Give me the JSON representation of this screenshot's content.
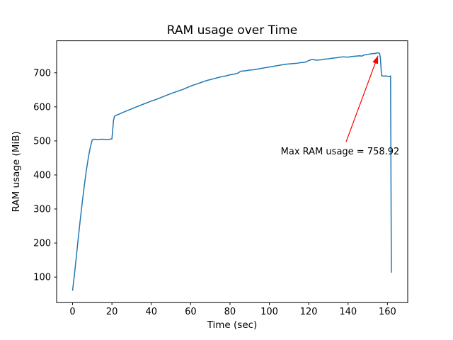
{
  "figure": {
    "background": "#ffffff"
  },
  "chart_data": {
    "type": "line",
    "title": "RAM usage over Time",
    "xlabel": "Time (sec)",
    "ylabel": "RAM usage (MiB)",
    "xlim": [
      -8.1,
      170.3
    ],
    "ylim": [
      25,
      794
    ],
    "x_ticks": [
      0,
      20,
      40,
      60,
      80,
      100,
      120,
      140,
      160
    ],
    "y_ticks": [
      100,
      200,
      300,
      400,
      500,
      600,
      700
    ],
    "grid": false,
    "legend": false,
    "line_color": "#1f77b4",
    "line_width": 1.5,
    "series": [
      {
        "name": "RAM usage",
        "points": [
          [
            0,
            60
          ],
          [
            1,
            110
          ],
          [
            2,
            165
          ],
          [
            3,
            220
          ],
          [
            4,
            273
          ],
          [
            5,
            323
          ],
          [
            6,
            370
          ],
          [
            7,
            413
          ],
          [
            8,
            450
          ],
          [
            9,
            481
          ],
          [
            10,
            503
          ],
          [
            11,
            505
          ],
          [
            13,
            504
          ],
          [
            15,
            505
          ],
          [
            17,
            504
          ],
          [
            19,
            505
          ],
          [
            20,
            506
          ],
          [
            20.8,
            560
          ],
          [
            21.3,
            572
          ],
          [
            22,
            575
          ],
          [
            23,
            577
          ],
          [
            25,
            582
          ],
          [
            27,
            587
          ],
          [
            30,
            594
          ],
          [
            33,
            601
          ],
          [
            36,
            608
          ],
          [
            40,
            617
          ],
          [
            43,
            623
          ],
          [
            46,
            630
          ],
          [
            50,
            639
          ],
          [
            53,
            645
          ],
          [
            56,
            651
          ],
          [
            60,
            661
          ],
          [
            62,
            665
          ],
          [
            64,
            669
          ],
          [
            66,
            673
          ],
          [
            68,
            677
          ],
          [
            70,
            680
          ],
          [
            72,
            683
          ],
          [
            74,
            686
          ],
          [
            76,
            689
          ],
          [
            78,
            691
          ],
          [
            80,
            694
          ],
          [
            82,
            696
          ],
          [
            84,
            699
          ],
          [
            85,
            703
          ],
          [
            86,
            705
          ],
          [
            88,
            706
          ],
          [
            90,
            708
          ],
          [
            92,
            709
          ],
          [
            94,
            711
          ],
          [
            96,
            713
          ],
          [
            98,
            715
          ],
          [
            100,
            717
          ],
          [
            102,
            719
          ],
          [
            104,
            721
          ],
          [
            106,
            723
          ],
          [
            108,
            725
          ],
          [
            110,
            726
          ],
          [
            112,
            727
          ],
          [
            114,
            728
          ],
          [
            116,
            730
          ],
          [
            118,
            731
          ],
          [
            119,
            733
          ],
          [
            120,
            736
          ],
          [
            121,
            738
          ],
          [
            122,
            739
          ],
          [
            123,
            738
          ],
          [
            124,
            737
          ],
          [
            126,
            738
          ],
          [
            128,
            740
          ],
          [
            130,
            741
          ],
          [
            132,
            743
          ],
          [
            134,
            744
          ],
          [
            136,
            746
          ],
          [
            138,
            747
          ],
          [
            139,
            746
          ],
          [
            140,
            746
          ],
          [
            142,
            748
          ],
          [
            144,
            749
          ],
          [
            146,
            750
          ],
          [
            147,
            749
          ],
          [
            148,
            752
          ],
          [
            150,
            754
          ],
          [
            152,
            756
          ],
          [
            154,
            757
          ],
          [
            155,
            758.92
          ],
          [
            156,
            757
          ],
          [
            156.4,
            745
          ],
          [
            157,
            692
          ],
          [
            158,
            690
          ],
          [
            159,
            691
          ],
          [
            160,
            690
          ],
          [
            161,
            689
          ],
          [
            161.6,
            691
          ],
          [
            162,
            113
          ]
        ]
      }
    ],
    "max_value": 758.92,
    "annotation": {
      "text": "Max RAM usage = 758.92",
      "color": "#ff0000",
      "text_pos": [
        105.8,
        460
      ],
      "arrow_start": [
        139,
        497
      ],
      "arrow_end": [
        155.2,
        750
      ]
    }
  }
}
